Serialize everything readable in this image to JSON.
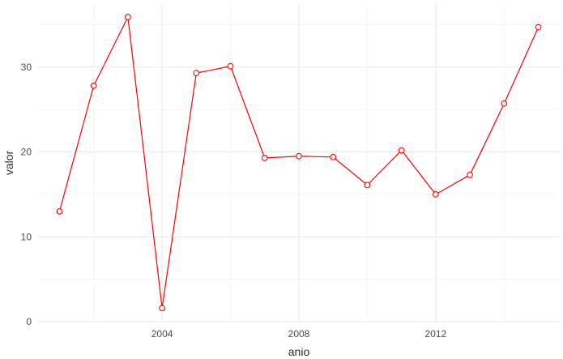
{
  "chart_data": {
    "type": "line",
    "xlabel": "anio",
    "ylabel": "valor",
    "x": [
      2001,
      2002,
      2003,
      2004,
      2005,
      2006,
      2007,
      2008,
      2009,
      2010,
      2011,
      2012,
      2013,
      2014,
      2015
    ],
    "series": [
      {
        "values": [
          13.0,
          27.8,
          35.9,
          1.6,
          29.3,
          30.1,
          19.3,
          19.5,
          19.4,
          16.1,
          20.2,
          15.0,
          17.3,
          25.7,
          34.7
        ]
      }
    ],
    "xlim": [
      2000.35,
      2015.65
    ],
    "ylim": [
      0,
      35.9
    ],
    "x_ticks": [
      2004,
      2008,
      2012
    ],
    "x_tick_labels": [
      "2004",
      "2008",
      "2012"
    ],
    "x_minor_ticks": [
      2002,
      2006,
      2010,
      2014
    ],
    "y_ticks": [
      0,
      10,
      20,
      30
    ],
    "y_tick_labels": [
      "0",
      "10",
      "20",
      "30"
    ],
    "y_minor_ticks": [
      5,
      15,
      25,
      35
    ],
    "grid": true,
    "legend": "none",
    "colors": {
      "line": "#ff0000",
      "marker_fill": "#ffffff",
      "grid_major": "#ebebeb",
      "grid_minor": "#f5f5f5",
      "tick_text": "#4d4d4d",
      "axis_title": "#333333"
    }
  }
}
